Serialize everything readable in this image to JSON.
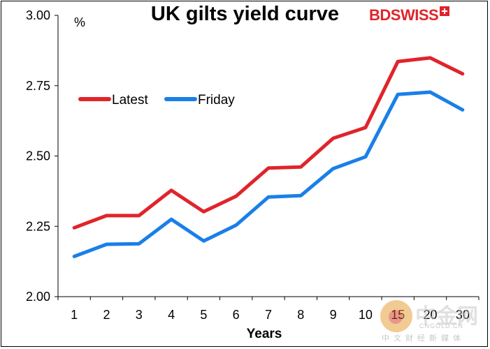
{
  "chart_data": {
    "type": "line",
    "title": "UK gilts yield curve",
    "unit_label": "%",
    "xlabel": "Years",
    "ylabel": "",
    "x_categories": [
      "1",
      "2",
      "3",
      "4",
      "5",
      "6",
      "7",
      "8",
      "9",
      "10",
      "15",
      "20",
      "30"
    ],
    "ylim": [
      2.0,
      3.0
    ],
    "y_ticks": [
      "2.00",
      "2.25",
      "2.50",
      "2.75",
      "3.00"
    ],
    "y_tick_values": [
      2.0,
      2.25,
      2.5,
      2.75,
      3.0
    ],
    "grid": false,
    "legend_position": "upper-left",
    "series": [
      {
        "name": "Latest",
        "color": "#e0242b",
        "values": [
          2.245,
          2.288,
          2.288,
          2.378,
          2.302,
          2.357,
          2.457,
          2.461,
          2.563,
          2.601,
          2.836,
          2.849,
          2.792
        ]
      },
      {
        "name": "Friday",
        "color": "#1a7fe8",
        "values": [
          2.143,
          2.186,
          2.188,
          2.275,
          2.198,
          2.254,
          2.354,
          2.359,
          2.455,
          2.497,
          2.719,
          2.727,
          2.664
        ]
      }
    ]
  },
  "logo": {
    "text_bd": "BD",
    "text_swiss": "SWISS"
  },
  "watermark": {
    "name": "中金网",
    "url": "CNGOLD.CN",
    "subtitle": "中文财经新媒体"
  }
}
